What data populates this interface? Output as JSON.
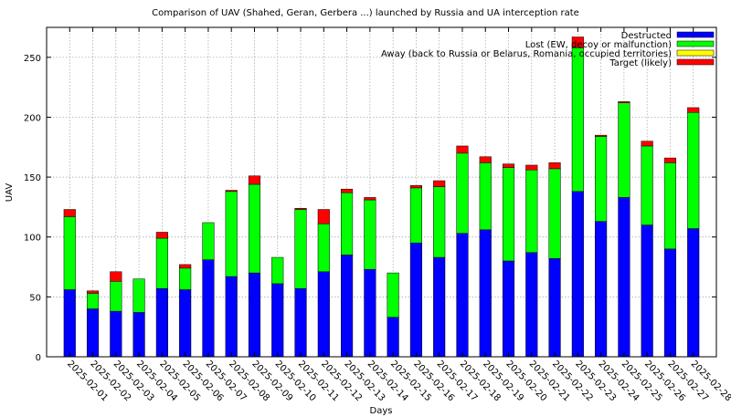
{
  "chart_data": {
    "type": "bar",
    "stacked": true,
    "title": "Comparison of UAV (Shahed, Geran, Gerbera ...) launched by Russia and UA interception rate",
    "xlabel": "Days",
    "ylabel": "UAV",
    "ylim": [
      0,
      275
    ],
    "yticks": [
      0,
      50,
      100,
      150,
      200,
      250
    ],
    "grid": true,
    "legend_position": "top-right",
    "categories": [
      "2025-02-01",
      "2025-02-02",
      "2025-02-03",
      "2025-02-04",
      "2025-02-05",
      "2025-02-06",
      "2025-02-07",
      "2025-02-08",
      "2025-02-09",
      "2025-02-10",
      "2025-02-11",
      "2025-02-12",
      "2025-02-13",
      "2025-02-14",
      "2025-02-15",
      "2025-02-16",
      "2025-02-17",
      "2025-02-18",
      "2025-02-19",
      "2025-02-20",
      "2025-02-21",
      "2025-02-22",
      "2025-02-23",
      "2025-02-24",
      "2025-02-25",
      "2025-02-26",
      "2025-02-27",
      "2025-02-28"
    ],
    "series": [
      {
        "name": "Destructed",
        "color": "#0000ff",
        "values": [
          56,
          40,
          38,
          37,
          57,
          56,
          81,
          67,
          70,
          61,
          57,
          71,
          85,
          73,
          33,
          95,
          83,
          103,
          106,
          80,
          87,
          82,
          138,
          113,
          133,
          110,
          90,
          107
        ]
      },
      {
        "name": "Lost (EW, decoy or malfunction)",
        "color": "#00ff00",
        "values": [
          61,
          13,
          25,
          28,
          42,
          18,
          31,
          71,
          74,
          22,
          66,
          40,
          52,
          58,
          37,
          46,
          59,
          67,
          56,
          78,
          69,
          75,
          120,
          71,
          79,
          66,
          72,
          97
        ]
      },
      {
        "name": "Away (back to Russia or Belarus, Romania, occupied territories)",
        "color": "#ffff00",
        "values": [
          0,
          0,
          0,
          0,
          0,
          0,
          0,
          0,
          0,
          0,
          0,
          0,
          0,
          0,
          0,
          0,
          0,
          0,
          0,
          0,
          0,
          0,
          0,
          0,
          0,
          0,
          0,
          0
        ]
      },
      {
        "name": "Target (likely)",
        "color": "#ff0000",
        "values": [
          6,
          2,
          8,
          0,
          5,
          3,
          0,
          1,
          7,
          0,
          1,
          12,
          3,
          2,
          0,
          2,
          5,
          6,
          5,
          3,
          4,
          5,
          9,
          1,
          1,
          4,
          4,
          4
        ]
      }
    ]
  }
}
